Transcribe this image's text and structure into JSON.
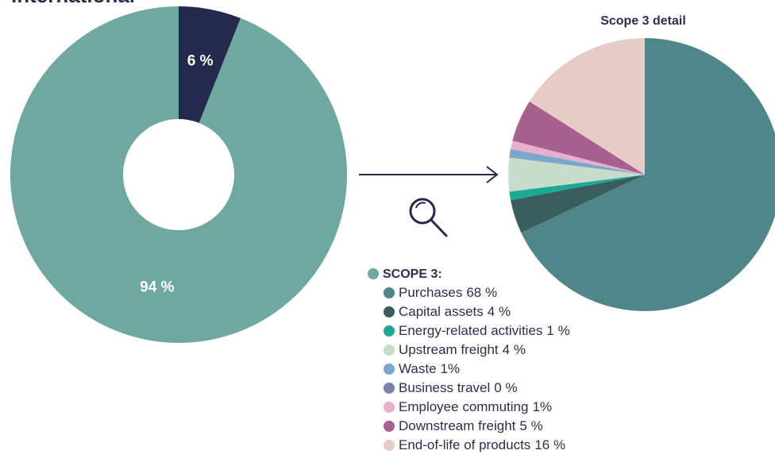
{
  "title": "International",
  "chart_data": [
    {
      "type": "donut",
      "categories": [
        null,
        null
      ],
      "values": [
        6,
        94
      ],
      "value_labels": [
        "6 %",
        "94 %"
      ],
      "colors": [
        "#232a4d",
        "#6fa8a0"
      ]
    },
    {
      "type": "pie",
      "title": "Scope 3 detail",
      "legend_title": "SCOPE 3:",
      "legend_color": "#6fa8a0",
      "categories": [
        "Purchases",
        "Capital assets",
        "Energy-related activities",
        "Upstream freight",
        "Waste",
        "Business travel",
        "Employee commuting",
        "Downstream freight",
        "End-of-life of products"
      ],
      "values": [
        68,
        4,
        1,
        4,
        1,
        0,
        1,
        5,
        16
      ],
      "value_labels": [
        "68 %",
        "4 %",
        "1 %",
        "4 %",
        "1%",
        "0 %",
        "1%",
        "5 %",
        "16 %"
      ],
      "colors": [
        "#4e868a",
        "#3a5e5e",
        "#1aaa96",
        "#c7dccb",
        "#7aa7cc",
        "#7a80a8",
        "#e6b0d0",
        "#a8608f",
        "#e6cbc6"
      ]
    }
  ]
}
